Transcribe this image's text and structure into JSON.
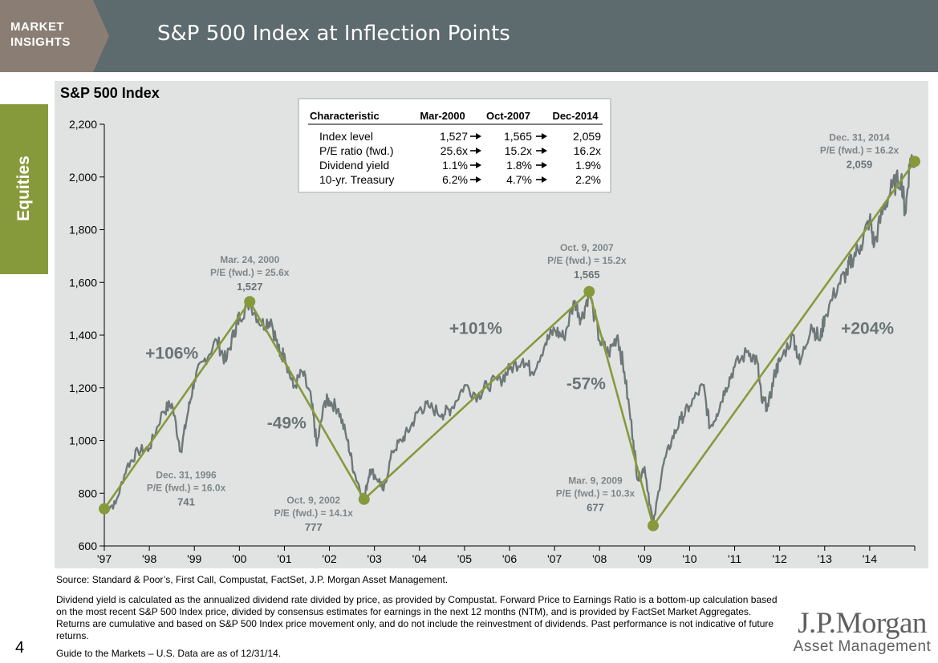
{
  "header": {
    "brand_line1": "MARKET",
    "brand_line2": "INSIGHTS",
    "title": "S&P 500 Index at Inflection Points"
  },
  "side_tab": {
    "label": "Equities"
  },
  "colors": {
    "header_bg": "#5d6a6e",
    "brand_tab": "#8a7e74",
    "accent_green": "#879a3b",
    "index_line": "#6f7878",
    "trend_line": "#879a3b",
    "panel_bg": "#e1e3e3"
  },
  "chart_data": {
    "type": "line",
    "title": "S&P 500 Index",
    "ylim": [
      600,
      2200
    ],
    "xlim": [
      1997.0,
      2015.0
    ],
    "grid": false,
    "x_tick_labels": [
      "'97",
      "'98",
      "'99",
      "'00",
      "'01",
      "'02",
      "'03",
      "'04",
      "'05",
      "'06",
      "'07",
      "'08",
      "'09",
      "'10",
      "'11",
      "'12",
      "'13",
      "'14"
    ],
    "y_tick_labels": [
      "600",
      "800",
      "1,000",
      "1,200",
      "1,400",
      "1,600",
      "1,800",
      "2,000",
      "2,200"
    ],
    "y_ticks": [
      600,
      800,
      1000,
      1200,
      1400,
      1600,
      1800,
      2000,
      2200
    ],
    "series": [
      {
        "role": "index",
        "points": [
          [
            1997.0,
            741
          ],
          [
            1997.25,
            760
          ],
          [
            1997.5,
            900
          ],
          [
            1997.75,
            960
          ],
          [
            1998.0,
            970
          ],
          [
            1998.3,
            1110
          ],
          [
            1998.5,
            1140
          ],
          [
            1998.7,
            960
          ],
          [
            1998.85,
            1100
          ],
          [
            1999.0,
            1230
          ],
          [
            1999.2,
            1300
          ],
          [
            1999.5,
            1380
          ],
          [
            1999.7,
            1300
          ],
          [
            1999.9,
            1420
          ],
          [
            2000.0,
            1470
          ],
          [
            2000.23,
            1527
          ],
          [
            2000.5,
            1440
          ],
          [
            2000.7,
            1460
          ],
          [
            2000.9,
            1320
          ],
          [
            2001.0,
            1330
          ],
          [
            2001.2,
            1200
          ],
          [
            2001.4,
            1260
          ],
          [
            2001.6,
            1150
          ],
          [
            2001.72,
            980
          ],
          [
            2001.9,
            1150
          ],
          [
            2002.0,
            1150
          ],
          [
            2002.2,
            1120
          ],
          [
            2002.4,
            1000
          ],
          [
            2002.55,
            880
          ],
          [
            2002.77,
            777
          ],
          [
            2002.9,
            890
          ],
          [
            2003.1,
            850
          ],
          [
            2003.2,
            810
          ],
          [
            2003.4,
            960
          ],
          [
            2003.6,
            1000
          ],
          [
            2003.8,
            1050
          ],
          [
            2004.0,
            1120
          ],
          [
            2004.2,
            1130
          ],
          [
            2004.5,
            1100
          ],
          [
            2004.7,
            1120
          ],
          [
            2005.0,
            1210
          ],
          [
            2005.3,
            1170
          ],
          [
            2005.5,
            1210
          ],
          [
            2005.8,
            1230
          ],
          [
            2006.0,
            1270
          ],
          [
            2006.3,
            1310
          ],
          [
            2006.5,
            1260
          ],
          [
            2006.8,
            1370
          ],
          [
            2007.0,
            1420
          ],
          [
            2007.2,
            1390
          ],
          [
            2007.45,
            1530
          ],
          [
            2007.6,
            1460
          ],
          [
            2007.77,
            1565
          ],
          [
            2008.0,
            1380
          ],
          [
            2008.2,
            1330
          ],
          [
            2008.4,
            1400
          ],
          [
            2008.55,
            1260
          ],
          [
            2008.75,
            1000
          ],
          [
            2008.85,
            850
          ],
          [
            2009.0,
            900
          ],
          [
            2009.19,
            677
          ],
          [
            2009.4,
            900
          ],
          [
            2009.6,
            1000
          ],
          [
            2009.8,
            1080
          ],
          [
            2010.0,
            1130
          ],
          [
            2010.3,
            1210
          ],
          [
            2010.45,
            1050
          ],
          [
            2010.6,
            1100
          ],
          [
            2010.8,
            1200
          ],
          [
            2011.0,
            1280
          ],
          [
            2011.3,
            1340
          ],
          [
            2011.5,
            1300
          ],
          [
            2011.6,
            1150
          ],
          [
            2011.75,
            1130
          ],
          [
            2011.9,
            1260
          ],
          [
            2012.0,
            1300
          ],
          [
            2012.3,
            1400
          ],
          [
            2012.45,
            1290
          ],
          [
            2012.7,
            1440
          ],
          [
            2012.9,
            1380
          ],
          [
            2013.0,
            1470
          ],
          [
            2013.3,
            1590
          ],
          [
            2013.5,
            1640
          ],
          [
            2013.6,
            1690
          ],
          [
            2013.8,
            1740
          ],
          [
            2014.0,
            1840
          ],
          [
            2014.1,
            1740
          ],
          [
            2014.3,
            1880
          ],
          [
            2014.5,
            1960
          ],
          [
            2014.7,
            2000
          ],
          [
            2014.79,
            1860
          ],
          [
            2014.9,
            2070
          ],
          [
            2015.0,
            2059
          ]
        ]
      },
      {
        "role": "trend",
        "points": [
          [
            1997.0,
            741
          ],
          [
            2000.23,
            1527
          ],
          [
            2002.77,
            777
          ],
          [
            2007.77,
            1565
          ],
          [
            2009.19,
            677
          ],
          [
            2015.0,
            2059
          ]
        ]
      }
    ],
    "inflection_points": [
      {
        "x": 1997.0,
        "y": 741,
        "date": "Dec. 31, 1996",
        "pe": "P/E (fwd.) = 16.0x",
        "value": "741"
      },
      {
        "x": 2000.23,
        "y": 1527,
        "date": "Mar. 24, 2000",
        "pe": "P/E (fwd.) = 25.6x",
        "value": "1,527"
      },
      {
        "x": 2002.77,
        "y": 777,
        "date": "Oct. 9, 2002",
        "pe": "P/E (fwd.) = 14.1x",
        "value": "777"
      },
      {
        "x": 2007.77,
        "y": 1565,
        "date": "Oct. 9, 2007",
        "pe": "P/E (fwd.) = 15.2x",
        "value": "1,565"
      },
      {
        "x": 2009.19,
        "y": 677,
        "date": "Mar. 9, 2009",
        "pe": "P/E (fwd.) = 10.3x",
        "value": "677"
      },
      {
        "x": 2015.0,
        "y": 2059,
        "date": "Dec. 31, 2014",
        "pe": "P/E (fwd.) = 16.2x",
        "value": "2,059"
      }
    ],
    "segment_returns": [
      {
        "label": "+106%",
        "x": 1998.5,
        "y": 1310
      },
      {
        "label": "-49%",
        "x": 2001.05,
        "y": 1045
      },
      {
        "label": "+101%",
        "x": 2005.25,
        "y": 1405
      },
      {
        "label": "-57%",
        "x": 2007.7,
        "y": 1195
      },
      {
        "label": "+204%",
        "x": 2013.95,
        "y": 1405
      }
    ],
    "table": {
      "headers": [
        "Characteristic",
        "Mar-2000",
        "Oct-2007",
        "Dec-2014"
      ],
      "rows": [
        [
          "Index level",
          "1,527",
          "1,565",
          "2,059"
        ],
        [
          "P/E ratio (fwd.)",
          "25.6x",
          "15.2x",
          "16.2x"
        ],
        [
          "Dividend yield",
          "1.1%",
          "1.8%",
          "1.9%"
        ],
        [
          "10-yr. Treasury",
          "6.2%",
          "4.7%",
          "2.2%"
        ]
      ]
    }
  },
  "footer": {
    "source": "Source: Standard & Poor’s, First Call, Compustat, FactSet, J.P. Morgan Asset Management.",
    "notes": "Dividend yield is calculated as the annualized dividend rate divided by price, as provided by Compustat. Forward Price to Earnings Ratio is a bottom-up calculation based on the most recent S&P 500 Index price, divided by consensus estimates for earnings in the next 12 months (NTM), and is provided by FactSet Market Aggregates. Returns are cumulative and based on S&P 500 Index price movement only, and do not include the reinvestment of dividends. Past performance is not indicative of future returns.",
    "guide": "Guide to the Markets – U.S. Data are as of 12/31/14.",
    "page_number": "4",
    "logo_main": "J.P.Morgan",
    "logo_sub": "Asset Management"
  }
}
